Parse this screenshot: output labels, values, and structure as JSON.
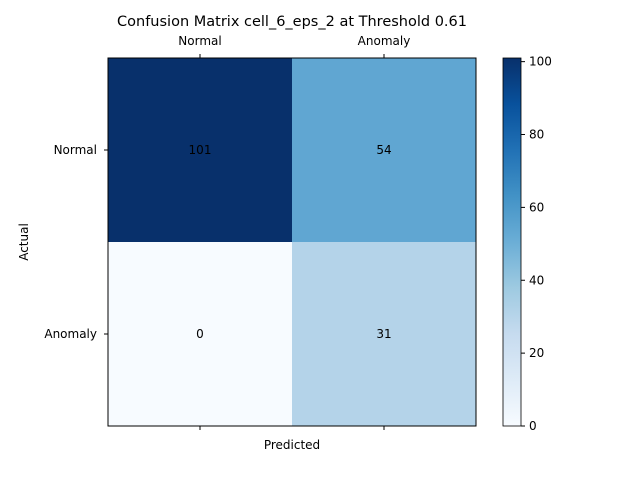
{
  "chart_data": {
    "type": "heatmap",
    "title": "Confusion Matrix cell_6_eps_2 at Threshold 0.61",
    "xlabel": "Predicted",
    "ylabel": "Actual",
    "x_categories": [
      "Normal",
      "Anomaly"
    ],
    "y_categories": [
      "Normal",
      "Anomaly"
    ],
    "values": [
      [
        101,
        54
      ],
      [
        0,
        31
      ]
    ],
    "colormap": "Blues",
    "colorbar": {
      "min": 0,
      "max": 101,
      "ticks": [
        "0",
        "20",
        "40",
        "60",
        "80",
        "100"
      ]
    },
    "x_axis_position": "top-and-bottom",
    "grid": false
  }
}
